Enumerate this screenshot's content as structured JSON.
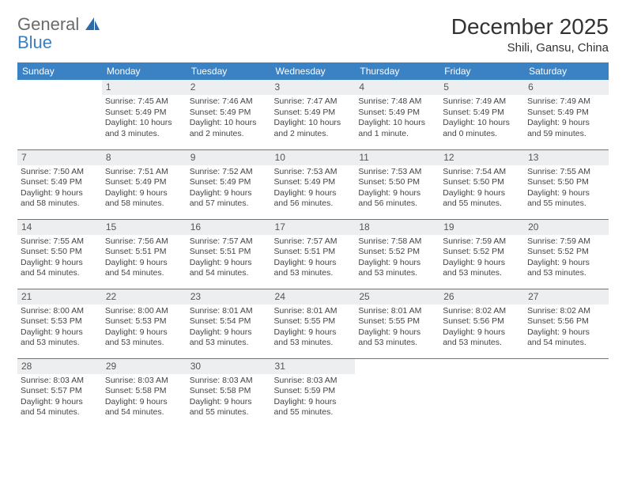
{
  "logo": {
    "line1": "General",
    "line2": "Blue"
  },
  "title": "December 2025",
  "location": "Shili, Gansu, China",
  "header_bg": "#3a82c4",
  "header_fg": "#ffffff",
  "daynum_bg": "#eceeef",
  "rule_color": "#3a82c4",
  "weekdays": [
    "Sunday",
    "Monday",
    "Tuesday",
    "Wednesday",
    "Thursday",
    "Friday",
    "Saturday"
  ],
  "weeks": [
    [
      {
        "n": "",
        "sr": "",
        "ss": "",
        "dl": ""
      },
      {
        "n": "1",
        "sr": "Sunrise: 7:45 AM",
        "ss": "Sunset: 5:49 PM",
        "dl": "Daylight: 10 hours and 3 minutes."
      },
      {
        "n": "2",
        "sr": "Sunrise: 7:46 AM",
        "ss": "Sunset: 5:49 PM",
        "dl": "Daylight: 10 hours and 2 minutes."
      },
      {
        "n": "3",
        "sr": "Sunrise: 7:47 AM",
        "ss": "Sunset: 5:49 PM",
        "dl": "Daylight: 10 hours and 2 minutes."
      },
      {
        "n": "4",
        "sr": "Sunrise: 7:48 AM",
        "ss": "Sunset: 5:49 PM",
        "dl": "Daylight: 10 hours and 1 minute."
      },
      {
        "n": "5",
        "sr": "Sunrise: 7:49 AM",
        "ss": "Sunset: 5:49 PM",
        "dl": "Daylight: 10 hours and 0 minutes."
      },
      {
        "n": "6",
        "sr": "Sunrise: 7:49 AM",
        "ss": "Sunset: 5:49 PM",
        "dl": "Daylight: 9 hours and 59 minutes."
      }
    ],
    [
      {
        "n": "7",
        "sr": "Sunrise: 7:50 AM",
        "ss": "Sunset: 5:49 PM",
        "dl": "Daylight: 9 hours and 58 minutes."
      },
      {
        "n": "8",
        "sr": "Sunrise: 7:51 AM",
        "ss": "Sunset: 5:49 PM",
        "dl": "Daylight: 9 hours and 58 minutes."
      },
      {
        "n": "9",
        "sr": "Sunrise: 7:52 AM",
        "ss": "Sunset: 5:49 PM",
        "dl": "Daylight: 9 hours and 57 minutes."
      },
      {
        "n": "10",
        "sr": "Sunrise: 7:53 AM",
        "ss": "Sunset: 5:49 PM",
        "dl": "Daylight: 9 hours and 56 minutes."
      },
      {
        "n": "11",
        "sr": "Sunrise: 7:53 AM",
        "ss": "Sunset: 5:50 PM",
        "dl": "Daylight: 9 hours and 56 minutes."
      },
      {
        "n": "12",
        "sr": "Sunrise: 7:54 AM",
        "ss": "Sunset: 5:50 PM",
        "dl": "Daylight: 9 hours and 55 minutes."
      },
      {
        "n": "13",
        "sr": "Sunrise: 7:55 AM",
        "ss": "Sunset: 5:50 PM",
        "dl": "Daylight: 9 hours and 55 minutes."
      }
    ],
    [
      {
        "n": "14",
        "sr": "Sunrise: 7:55 AM",
        "ss": "Sunset: 5:50 PM",
        "dl": "Daylight: 9 hours and 54 minutes."
      },
      {
        "n": "15",
        "sr": "Sunrise: 7:56 AM",
        "ss": "Sunset: 5:51 PM",
        "dl": "Daylight: 9 hours and 54 minutes."
      },
      {
        "n": "16",
        "sr": "Sunrise: 7:57 AM",
        "ss": "Sunset: 5:51 PM",
        "dl": "Daylight: 9 hours and 54 minutes."
      },
      {
        "n": "17",
        "sr": "Sunrise: 7:57 AM",
        "ss": "Sunset: 5:51 PM",
        "dl": "Daylight: 9 hours and 53 minutes."
      },
      {
        "n": "18",
        "sr": "Sunrise: 7:58 AM",
        "ss": "Sunset: 5:52 PM",
        "dl": "Daylight: 9 hours and 53 minutes."
      },
      {
        "n": "19",
        "sr": "Sunrise: 7:59 AM",
        "ss": "Sunset: 5:52 PM",
        "dl": "Daylight: 9 hours and 53 minutes."
      },
      {
        "n": "20",
        "sr": "Sunrise: 7:59 AM",
        "ss": "Sunset: 5:52 PM",
        "dl": "Daylight: 9 hours and 53 minutes."
      }
    ],
    [
      {
        "n": "21",
        "sr": "Sunrise: 8:00 AM",
        "ss": "Sunset: 5:53 PM",
        "dl": "Daylight: 9 hours and 53 minutes."
      },
      {
        "n": "22",
        "sr": "Sunrise: 8:00 AM",
        "ss": "Sunset: 5:53 PM",
        "dl": "Daylight: 9 hours and 53 minutes."
      },
      {
        "n": "23",
        "sr": "Sunrise: 8:01 AM",
        "ss": "Sunset: 5:54 PM",
        "dl": "Daylight: 9 hours and 53 minutes."
      },
      {
        "n": "24",
        "sr": "Sunrise: 8:01 AM",
        "ss": "Sunset: 5:55 PM",
        "dl": "Daylight: 9 hours and 53 minutes."
      },
      {
        "n": "25",
        "sr": "Sunrise: 8:01 AM",
        "ss": "Sunset: 5:55 PM",
        "dl": "Daylight: 9 hours and 53 minutes."
      },
      {
        "n": "26",
        "sr": "Sunrise: 8:02 AM",
        "ss": "Sunset: 5:56 PM",
        "dl": "Daylight: 9 hours and 53 minutes."
      },
      {
        "n": "27",
        "sr": "Sunrise: 8:02 AM",
        "ss": "Sunset: 5:56 PM",
        "dl": "Daylight: 9 hours and 54 minutes."
      }
    ],
    [
      {
        "n": "28",
        "sr": "Sunrise: 8:03 AM",
        "ss": "Sunset: 5:57 PM",
        "dl": "Daylight: 9 hours and 54 minutes."
      },
      {
        "n": "29",
        "sr": "Sunrise: 8:03 AM",
        "ss": "Sunset: 5:58 PM",
        "dl": "Daylight: 9 hours and 54 minutes."
      },
      {
        "n": "30",
        "sr": "Sunrise: 8:03 AM",
        "ss": "Sunset: 5:58 PM",
        "dl": "Daylight: 9 hours and 55 minutes."
      },
      {
        "n": "31",
        "sr": "Sunrise: 8:03 AM",
        "ss": "Sunset: 5:59 PM",
        "dl": "Daylight: 9 hours and 55 minutes."
      },
      {
        "n": "",
        "sr": "",
        "ss": "",
        "dl": ""
      },
      {
        "n": "",
        "sr": "",
        "ss": "",
        "dl": ""
      },
      {
        "n": "",
        "sr": "",
        "ss": "",
        "dl": ""
      }
    ]
  ]
}
